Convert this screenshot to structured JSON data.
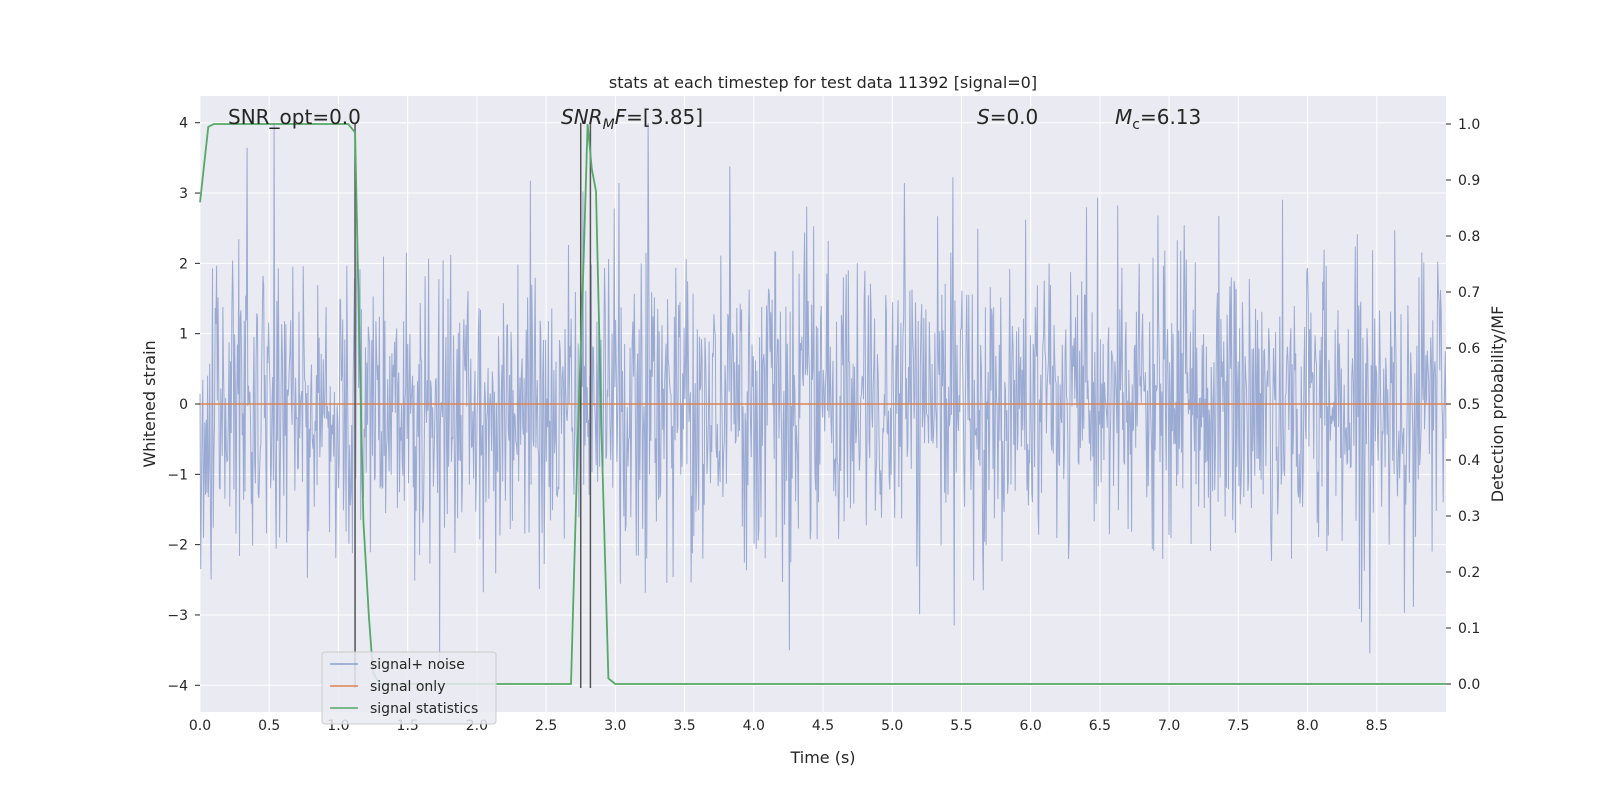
{
  "chart_data": {
    "type": "line",
    "title": "stats at each timestep for test data 11392 [signal=0]",
    "xlabel": "Time (s)",
    "ylabel": "Whitened strain",
    "y2label": "Detection probability/MF",
    "xlim": [
      0.0,
      9.0
    ],
    "ylim": [
      -4.38,
      4.38
    ],
    "y2lim": [
      -0.05,
      1.05
    ],
    "x_ticks": [
      0.0,
      0.5,
      1.0,
      1.5,
      2.0,
      2.5,
      3.0,
      3.5,
      4.0,
      4.5,
      5.0,
      5.5,
      6.0,
      6.5,
      7.0,
      7.5,
      8.0,
      8.5
    ],
    "x_tick_labels": [
      "0.0",
      "0.5",
      "1.0",
      "1.5",
      "2.0",
      "2.5",
      "3.0",
      "3.5",
      "4.0",
      "4.5",
      "5.0",
      "5.5",
      "6.0",
      "6.5",
      "7.0",
      "7.5",
      "8.0",
      "8.5"
    ],
    "y_ticks": [
      -4,
      -3,
      -2,
      -1,
      0,
      1,
      2,
      3,
      4
    ],
    "y_tick_labels": [
      "−4",
      "−3",
      "−2",
      "−1",
      "0",
      "1",
      "2",
      "3",
      "4"
    ],
    "y2_ticks": [
      0.0,
      0.1,
      0.2,
      0.3,
      0.4,
      0.5,
      0.6,
      0.7,
      0.8,
      0.9,
      1.0
    ],
    "y2_tick_labels": [
      "0.0",
      "0.1",
      "0.2",
      "0.3",
      "0.4",
      "0.5",
      "0.6",
      "0.7",
      "0.8",
      "0.9",
      "1.0"
    ],
    "grid": true,
    "legend_placement": "lower left",
    "series": [
      {
        "name": "signal+ noise",
        "axis": "left",
        "color": "#8c9fcc",
        "description_type": "noise",
        "x_start": 0.0,
        "x_end": 9.0,
        "n_samples": 1800,
        "typical_std": 1.0,
        "max": 4.0,
        "min": -4.0
      },
      {
        "name": "signal only",
        "axis": "left",
        "color": "#dd8452",
        "x": [
          0.0,
          9.0
        ],
        "y": [
          0.0,
          0.0
        ]
      },
      {
        "name": "signal statistics",
        "axis": "right",
        "color": "#55a868",
        "x": [
          0.0,
          0.06,
          0.1,
          0.2,
          0.5,
          0.8,
          1.0,
          1.07,
          1.12,
          1.14,
          1.18,
          1.22,
          1.25,
          1.3,
          1.5,
          2.0,
          2.5,
          2.68,
          2.73,
          2.77,
          2.8,
          2.83,
          2.86,
          2.9,
          2.95,
          3.0,
          4.0,
          6.0,
          7.0,
          8.0,
          9.0
        ],
        "y": [
          0.86,
          0.995,
          1.0,
          1.0,
          1.0,
          1.0,
          1.0,
          1.0,
          0.985,
          0.75,
          0.29,
          0.12,
          0.02,
          0.0,
          0.0,
          0.0,
          0.0,
          0.0,
          0.45,
          0.75,
          1.0,
          0.92,
          0.88,
          0.45,
          0.01,
          0.0,
          0.0,
          0.0,
          0.0,
          0.0,
          0.0
        ]
      }
    ],
    "vertical_lines": [
      {
        "x": 1.12,
        "color": "#555555"
      },
      {
        "x": 2.75,
        "color": "#555555"
      },
      {
        "x": 2.82,
        "color": "#555555"
      }
    ],
    "annotations": [
      {
        "id": "snr-opt",
        "text": "SNR_opt=0.0",
        "x": 0.2,
        "y": 4.1
      },
      {
        "id": "snr-mf",
        "text_italic": "SNR",
        "text_sub": "M",
        "text_italic2": "F",
        "text_rest": "=[3.85]",
        "x": 2.6,
        "y": 4.1
      },
      {
        "id": "s-stat",
        "text_italic": "S",
        "text_rest": "=0.0",
        "x": 5.6,
        "y": 4.1
      },
      {
        "id": "mc",
        "text_italic": "M",
        "text_sub": "c",
        "text_rest": "=6.13",
        "x": 6.6,
        "y": 4.1
      }
    ]
  },
  "colors": {
    "plot_bg": "#eaeaf2",
    "grid": "#ffffff",
    "vline": "#555555",
    "text": "#262626"
  }
}
